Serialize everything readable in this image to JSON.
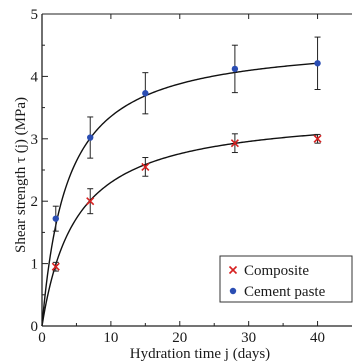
{
  "chart_data": {
    "type": "scatter",
    "xlabel": "Hydration time j (days)",
    "ylabel": "Shear strength τ (j) (MPa)",
    "xlim": [
      0,
      45
    ],
    "ylim": [
      0,
      5
    ],
    "x_ticks": [
      0,
      10,
      20,
      30,
      40
    ],
    "y_ticks": [
      0,
      1,
      2,
      3,
      4,
      5
    ],
    "grid": false,
    "legend_position": "bottom-right",
    "series": [
      {
        "name": "Composite",
        "marker": "cross",
        "color": "#d62020",
        "x": [
          2,
          7,
          15,
          28,
          40
        ],
        "y": [
          0.95,
          2.0,
          2.55,
          2.93,
          3.0
        ],
        "err": [
          0.07,
          0.2,
          0.15,
          0.15,
          0.07
        ],
        "fit": {
          "a": 3.45,
          "b": 5.0
        }
      },
      {
        "name": "Cement paste",
        "marker": "dot",
        "color": "#2a4db3",
        "x": [
          2,
          7,
          15,
          28,
          40
        ],
        "y": [
          1.72,
          3.02,
          3.73,
          4.12,
          4.21
        ],
        "err": [
          0.2,
          0.33,
          0.33,
          0.38,
          0.42
        ],
        "fit": {
          "a": 4.6,
          "b": 3.7
        }
      }
    ]
  }
}
